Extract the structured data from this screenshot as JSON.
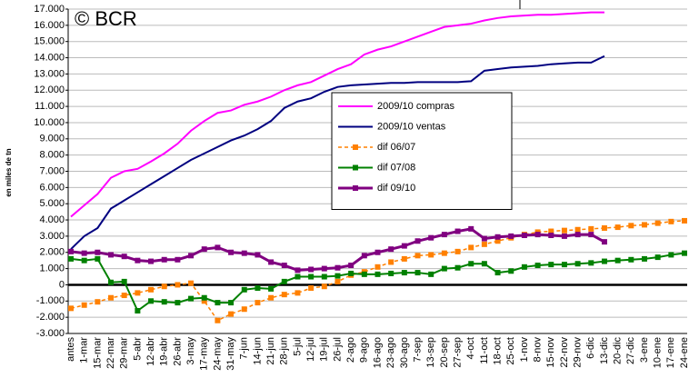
{
  "chart_data": {
    "type": "line",
    "watermark": "© BCR",
    "y_label": "en miles de tn",
    "categories": [
      "antes",
      "1-mar",
      "15-mar",
      "22-mar",
      "29-mar",
      "5-abr",
      "12-abr",
      "19-abr",
      "26-abr",
      "3-may",
      "17-may",
      "24-may",
      "31-may",
      "7-jun",
      "14-jun",
      "21-jun",
      "28-jun",
      "5-jul",
      "12-jul",
      "19-jul",
      "26-jul",
      "2-ago",
      "9-ago",
      "16-ago",
      "23-ago",
      "30-ago",
      "7-sep",
      "13-sep",
      "20-sep",
      "27-sep",
      "4-oct",
      "11-oct",
      "18-oct",
      "25-oct",
      "1-nov",
      "8-nov",
      "15-nov",
      "22-nov",
      "29-nov",
      "6-dic",
      "13-dic",
      "20-dic",
      "27-dic",
      "3-ene",
      "10-ene",
      "17-ene",
      "24-ene"
    ],
    "series": [
      {
        "name": "2009/10 compras",
        "color": "#ff00ff",
        "marker": "none",
        "dashed": false,
        "width": 2,
        "values": [
          4200,
          4900,
          5600,
          6600,
          7000,
          7150,
          7600,
          8100,
          8700,
          9500,
          10100,
          10600,
          10750,
          11100,
          11300,
          11600,
          12000,
          12300,
          12500,
          12900,
          13300,
          13600,
          14200,
          14500,
          14700,
          15000,
          15300,
          15600,
          15900,
          16000,
          16100,
          16300,
          16450,
          16550,
          16600,
          16650,
          16650,
          16700,
          16750,
          16800,
          16800,
          null,
          null,
          null,
          null,
          null,
          null
        ]
      },
      {
        "name": "2009/10 ventas",
        "color": "#000080",
        "marker": "none",
        "dashed": false,
        "width": 2,
        "values": [
          2200,
          3000,
          3500,
          4700,
          5200,
          5700,
          6200,
          6700,
          7200,
          7700,
          8100,
          8500,
          8900,
          9200,
          9600,
          10100,
          10900,
          11300,
          11500,
          11900,
          12200,
          12300,
          12350,
          12400,
          12450,
          12450,
          12500,
          12500,
          12500,
          12500,
          12550,
          13200,
          13300,
          13400,
          13450,
          13500,
          13600,
          13650,
          13700,
          13700,
          14100,
          null,
          null,
          null,
          null,
          null,
          null
        ]
      },
      {
        "name": "dif 06/07",
        "color": "#ff8000",
        "marker": "square",
        "dashed": true,
        "width": 1.5,
        "values": [
          -1450,
          -1250,
          -1050,
          -800,
          -650,
          -500,
          -300,
          -100,
          0,
          100,
          -1000,
          -2200,
          -1800,
          -1500,
          -1100,
          -800,
          -600,
          -500,
          -200,
          -100,
          200,
          600,
          800,
          1100,
          1400,
          1600,
          1800,
          1850,
          1950,
          2050,
          2300,
          2500,
          2700,
          2900,
          3100,
          3250,
          3300,
          3350,
          3400,
          3450,
          3500,
          3550,
          3650,
          3700,
          3800,
          3900,
          3950
        ]
      },
      {
        "name": "dif 07/08",
        "color": "#008000",
        "marker": "square",
        "dashed": false,
        "width": 2,
        "values": [
          1600,
          1500,
          1600,
          150,
          200,
          -1600,
          -1000,
          -1050,
          -1100,
          -850,
          -800,
          -1100,
          -1100,
          -300,
          -200,
          -250,
          200,
          500,
          500,
          500,
          550,
          700,
          650,
          650,
          700,
          750,
          750,
          650,
          1000,
          1050,
          1300,
          1300,
          750,
          850,
          1100,
          1200,
          1250,
          1250,
          1300,
          1350,
          1450,
          1500,
          1550,
          1600,
          1700,
          1850,
          1950
        ]
      },
      {
        "name": "dif 09/10",
        "color": "#800080",
        "marker": "square",
        "dashed": false,
        "width": 3,
        "values": [
          2050,
          1950,
          2000,
          1850,
          1750,
          1500,
          1450,
          1550,
          1550,
          1800,
          2200,
          2300,
          2000,
          1950,
          1850,
          1400,
          1200,
          900,
          950,
          1000,
          1050,
          1200,
          1800,
          2000,
          2200,
          2400,
          2700,
          2900,
          3100,
          3300,
          3450,
          2850,
          2950,
          3000,
          3050,
          3100,
          3050,
          3000,
          3100,
          3100,
          2650,
          null,
          null,
          null,
          null,
          null,
          null
        ]
      }
    ],
    "ylim": [
      -3000,
      17000
    ],
    "yticks": [
      {
        "value": -3000,
        "label": "-3.000"
      },
      {
        "value": -2000,
        "label": "-2.000"
      },
      {
        "value": -1000,
        "label": "-1.000"
      },
      0,
      {
        "value": 1000,
        "label": "1.000"
      },
      {
        "value": 2000,
        "label": "2.000"
      },
      {
        "value": 3000,
        "label": "3.000"
      },
      {
        "value": 4000,
        "label": "4.000"
      },
      {
        "value": 5000,
        "label": "5.000"
      },
      {
        "value": 6000,
        "label": "6.000"
      },
      {
        "value": 7000,
        "label": "7.000"
      },
      {
        "value": 8000,
        "label": "8.000"
      },
      {
        "value": 9000,
        "label": "9.000"
      },
      {
        "value": 10000,
        "label": "10.000"
      },
      {
        "value": 11000,
        "label": "11.000"
      },
      {
        "value": 12000,
        "label": "12.000"
      },
      {
        "value": 13000,
        "label": "13.000"
      },
      {
        "value": 14000,
        "label": "14.000"
      },
      {
        "value": 15000,
        "label": "15.000"
      },
      {
        "value": 16000,
        "label": "16.000"
      },
      {
        "value": 17000,
        "label": "17.000"
      }
    ],
    "grid": true,
    "legend": "center"
  }
}
